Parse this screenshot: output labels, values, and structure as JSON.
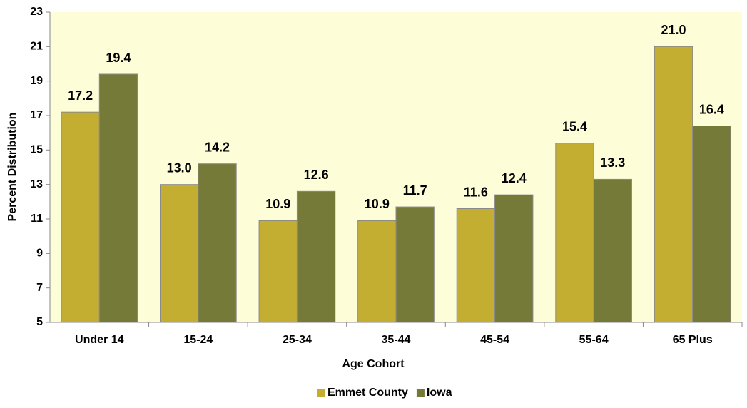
{
  "chart_data": {
    "type": "bar",
    "x_label": "Age Cohort",
    "y_label": "Percent Distribution",
    "categories": [
      "Under 14",
      "15-24",
      "25-34",
      "35-44",
      "45-54",
      "55-64",
      "65 Plus"
    ],
    "series": [
      {
        "name": "Emmet County",
        "color": "#c4ae32",
        "values": [
          17.2,
          13.0,
          10.9,
          10.9,
          11.6,
          15.4,
          21.0
        ],
        "value_labels": [
          "17.2",
          "13.0",
          "10.9",
          "10.9",
          "11.6",
          "15.4",
          "21.0"
        ]
      },
      {
        "name": "Iowa",
        "color": "#767a38",
        "values": [
          19.4,
          14.2,
          12.6,
          11.7,
          12.4,
          13.3,
          16.4
        ],
        "value_labels": [
          "19.4",
          "14.2",
          "12.6",
          "11.7",
          "12.4",
          "13.3",
          "16.4"
        ]
      }
    ],
    "ylim": [
      5,
      23
    ],
    "yticks": [
      5,
      7,
      9,
      11,
      13,
      15,
      17,
      19,
      21,
      23
    ],
    "grid": false,
    "legend": "bottom"
  }
}
